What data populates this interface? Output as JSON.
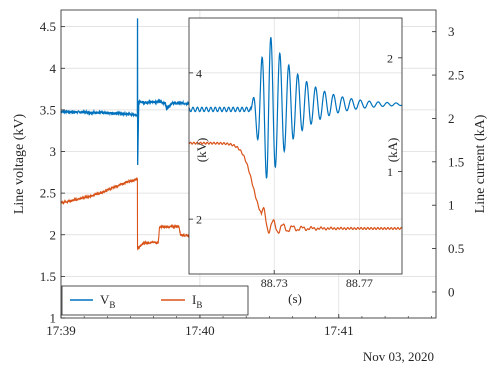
{
  "colors": {
    "vb": "#0072BD",
    "ib": "#D95319",
    "grid": "#dcdcdc",
    "axis": "#262626"
  },
  "chart_data": [
    {
      "type": "line",
      "title": "",
      "ylabel_left": "Line voltage (kV)",
      "ylabel_right": "Line current (kA)",
      "x_tick_labels": [
        "17:39",
        "17:40",
        "17:41"
      ],
      "x_date_label": "Nov 03, 2020",
      "x_tick_minutes": [
        0,
        1,
        2
      ],
      "xlim_minutes": [
        0,
        2.7
      ],
      "ylim_left": [
        1,
        4.7
      ],
      "ylim_right": [
        -0.3,
        3.25
      ],
      "y_ticks_left": [
        "1",
        "1.5",
        "2",
        "2.5",
        "3",
        "3.5",
        "4",
        "4.5"
      ],
      "y_ticks_right": [
        "0",
        "0.5",
        "1",
        "1.5",
        "2",
        "2.5",
        "3"
      ],
      "grid": true,
      "legend_position": "bottom-left",
      "series": [
        {
          "name": "V_B",
          "label_main": "V",
          "label_sub": "B",
          "axis": "left",
          "x_minutes": [
            0.0,
            0.2,
            0.4,
            0.55,
            0.551,
            0.552,
            0.56,
            0.6,
            0.7,
            0.75,
            0.76,
            0.8,
            0.95,
            1.0
          ],
          "values": [
            3.48,
            3.47,
            3.46,
            3.44,
            4.6,
            2.85,
            3.6,
            3.59,
            3.6,
            3.58,
            3.52,
            3.58,
            3.58,
            3.56
          ]
        },
        {
          "name": "I_B",
          "label_main": "I",
          "label_sub": "B",
          "axis": "right",
          "x_minutes": [
            0.0,
            0.1,
            0.2,
            0.3,
            0.4,
            0.5,
            0.55,
            0.551,
            0.6,
            0.7,
            0.71,
            0.8,
            0.85,
            0.86,
            1.0
          ],
          "values": [
            1.03,
            1.06,
            1.1,
            1.15,
            1.22,
            1.28,
            1.3,
            0.5,
            0.57,
            0.57,
            0.75,
            0.75,
            0.76,
            0.66,
            0.63
          ]
        }
      ]
    },
    {
      "type": "line",
      "title": "",
      "xlabel": "(s)",
      "ylabel_left": "(kV)",
      "ylabel_right": "(kA)",
      "x_tick_labels": [
        "88.73",
        "88.77"
      ],
      "x_ticks": [
        88.73,
        88.77
      ],
      "xlim": [
        88.69,
        88.79
      ],
      "ylim_left": [
        1.25,
        4.75
      ],
      "ylim_right": [
        0.1,
        2.35
      ],
      "y_ticks_left": [
        "2",
        "4"
      ],
      "y_ticks_right": [
        "1",
        "2"
      ],
      "grid": true,
      "series": [
        {
          "name": "V_B",
          "axis": "left",
          "x_range": [
            88.69,
            88.79
          ],
          "pre_value": 3.5,
          "step_time": 88.727,
          "oscillation_amplitude": 1.05,
          "oscillation_period_s": 0.0042,
          "decay_s": 0.015,
          "post_value": 3.57
        },
        {
          "name": "I_B",
          "axis": "right",
          "x_range": [
            88.69,
            88.79
          ],
          "pre_value": 1.25,
          "step_time": 88.72,
          "post_value": 0.5,
          "oscillation_amplitude": 0.1,
          "oscillation_period_s": 0.0045
        }
      ]
    }
  ]
}
